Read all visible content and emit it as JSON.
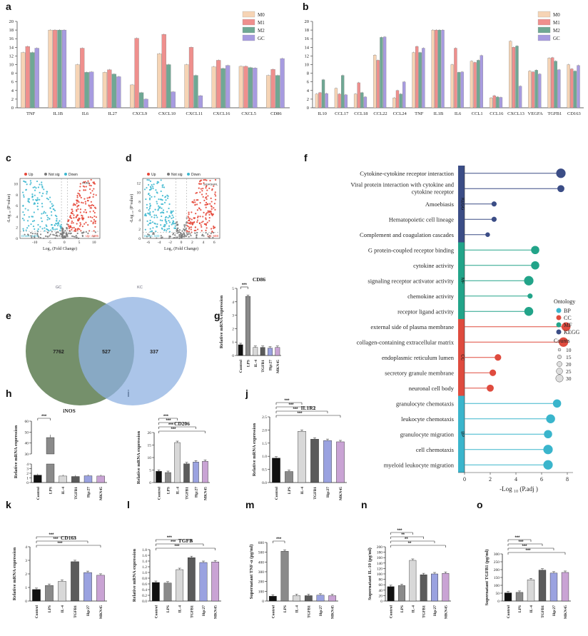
{
  "panel_letters": [
    "a",
    "b",
    "c",
    "d",
    "e",
    "f",
    "g",
    "h",
    "i",
    "j",
    "k",
    "l",
    "m",
    "n",
    "o"
  ],
  "colors": {
    "M0": "#f6d4b5",
    "M1": "#ef8f8d",
    "M2": "#6fa894",
    "GC": "#a79be0",
    "up": "#e6483a",
    "down": "#3eb8d0",
    "ns": "#7a7a7a",
    "bp": "#3ab5cc",
    "cc": "#df4b3e",
    "mf": "#22a489",
    "kegg": "#3b4d86",
    "venn_gc": "#6e8a63",
    "venn_kc": "#8fb2e2",
    "gray_bar": "#a9a9a9",
    "blue_bar": "#9aa2e0",
    "purple_bar": "#c9a3d4",
    "dark": "#111111",
    "mid": "#5b5b5b",
    "light": "#d8d8d8"
  },
  "chart_data": [
    {
      "id": "a",
      "type": "bar",
      "legend": [
        "M0",
        "M1",
        "M2",
        "GC"
      ],
      "legend_position": "top-right",
      "ylim": [
        0,
        20
      ],
      "yticks": [
        0,
        2,
        4,
        6,
        8,
        10,
        12,
        14,
        16,
        18,
        20
      ],
      "categories": [
        "TNF",
        "IL1B",
        "IL6",
        "IL27",
        "CXCL9",
        "CXCL10",
        "CXCL11",
        "CXCL16",
        "CXCL5",
        "CD86"
      ],
      "series": [
        {
          "name": "M0",
          "values": [
            12.8,
            18,
            10,
            8.2,
            5.3,
            12.5,
            10,
            9.5,
            9.6,
            7.5
          ]
        },
        {
          "name": "M1",
          "values": [
            14.2,
            18,
            13.8,
            8.8,
            16.1,
            17,
            14,
            11,
            9.6,
            8.9
          ]
        },
        {
          "name": "M2",
          "values": [
            12.8,
            18,
            8.2,
            7.8,
            3.5,
            10,
            7.5,
            9.1,
            9.3,
            7.5
          ]
        },
        {
          "name": "GC",
          "values": [
            13.8,
            18,
            8.3,
            7.2,
            2,
            3.7,
            2.8,
            9.8,
            9.2,
            11.4
          ]
        }
      ]
    },
    {
      "id": "b",
      "type": "bar",
      "legend": [
        "M0",
        "M1",
        "M2",
        "GC"
      ],
      "legend_position": "top-right",
      "ylim": [
        0,
        20
      ],
      "yticks": [
        0,
        2,
        4,
        6,
        8,
        10,
        12,
        14,
        16,
        18,
        20
      ],
      "categories": [
        "IL10",
        "CCL17",
        "CCL18",
        "CCL22",
        "CCL24",
        "TNF",
        "IL1B",
        "IL6",
        "CCL1",
        "CCL16",
        "CXCL13",
        "VEGFA",
        "TGFB1",
        "CD163"
      ],
      "series": [
        {
          "name": "M0",
          "values": [
            3.2,
            4.5,
            3.2,
            12.2,
            2.3,
            12.8,
            18,
            10,
            10.8,
            2.3,
            15.4,
            8.5,
            11.5,
            10
          ]
        },
        {
          "name": "M1",
          "values": [
            3.5,
            3.2,
            5.8,
            11,
            4,
            14.2,
            18,
            13.8,
            10.5,
            2.8,
            14,
            8.3,
            11.6,
            9
          ]
        },
        {
          "name": "M2",
          "values": [
            6.5,
            7.5,
            3.5,
            16.3,
            3.2,
            12.8,
            18,
            8.2,
            11,
            2.5,
            14.3,
            8.7,
            10.8,
            8.5
          ]
        },
        {
          "name": "GC",
          "values": [
            3.3,
            3,
            2.5,
            16.4,
            6,
            13.8,
            18,
            8.3,
            12.1,
            2.4,
            5,
            7.8,
            8.8,
            9.8
          ]
        }
      ]
    },
    {
      "id": "c",
      "type": "scatter",
      "xlabel": "Log₂ (Fold Change)",
      "ylabel": "-Log ₁₀ (P value)",
      "legend": [
        "Up",
        "Not sig",
        "Down"
      ],
      "xticks": [
        -10,
        -5,
        0,
        5,
        10
      ],
      "yticks": [
        0,
        2,
        4,
        6,
        8,
        10
      ],
      "annotation": "DUB1",
      "down_label": "Down: 4401",
      "up_label": "Up: 4895"
    },
    {
      "id": "d",
      "type": "scatter",
      "xlabel": "Log₂ (Fold Change)",
      "ylabel": "-Log ₁₀ (P value)",
      "legend": [
        "Up",
        "Not sig",
        "Down"
      ],
      "xticks": [
        -6,
        -4,
        -2,
        0,
        2,
        4,
        6
      ],
      "yticks": [
        0,
        2,
        4,
        6,
        8,
        10,
        12
      ],
      "annotation": "SIGRSHRL",
      "down_label": "Down: 533",
      "up_label": "Up: 688"
    },
    {
      "id": "e",
      "type": "venn",
      "sets": [
        "GC",
        "KC"
      ],
      "values": {
        "left": "7762",
        "overlap": "527",
        "right": "337"
      }
    },
    {
      "id": "f",
      "type": "lollipop",
      "xlabel": "-Log ₁₀ (P.adj )",
      "xticks": [
        0,
        2,
        4,
        6,
        8
      ],
      "terms": [
        {
          "term": "Cytokine-cytokine receptor interaction",
          "value": 7.5,
          "cat": "KEGG",
          "count": 30
        },
        {
          "term": "Viral protein interaction with cytokine and cytokine receptor",
          "value": 7.5,
          "cat": "KEGG",
          "count": 20
        },
        {
          "term": "Amoebiasis",
          "value": 2.3,
          "cat": "KEGG",
          "count": 12
        },
        {
          "term": "Hematopoietic cell lineage",
          "value": 2.3,
          "cat": "KEGG",
          "count": 12
        },
        {
          "term": "Complement and coagulation cascades",
          "value": 1.8,
          "cat": "KEGG",
          "count": 10
        },
        {
          "term": "G protein-coupled receptor binding",
          "value": 5.5,
          "cat": "MF",
          "count": 25
        },
        {
          "term": "cytokine activity",
          "value": 5.5,
          "cat": "MF",
          "count": 25
        },
        {
          "term": "signaling receptor activator activity",
          "value": 5,
          "cat": "MF",
          "count": 30
        },
        {
          "term": "chemokine activity",
          "value": 5.1,
          "cat": "MF",
          "count": 12
        },
        {
          "term": "receptor ligand activity",
          "value": 5,
          "cat": "MF",
          "count": 28
        },
        {
          "term": "external side of plasma membrane",
          "value": 7.9,
          "cat": "CC",
          "count": 28
        },
        {
          "term": "collagen-containing extracellular matrix",
          "value": 7.7,
          "cat": "CC",
          "count": 30
        },
        {
          "term": "endoplasmic reticulum lumen",
          "value": 2.6,
          "cat": "CC",
          "count": 18
        },
        {
          "term": "secretory granule membrane",
          "value": 2.2,
          "cat": "CC",
          "count": 18
        },
        {
          "term": "neuronal cell body",
          "value": 2,
          "cat": "CC",
          "count": 20
        },
        {
          "term": "granulocyte chemotaxis",
          "value": 7.2,
          "cat": "BP",
          "count": 25
        },
        {
          "term": "leukocyte chemotaxis",
          "value": 6.7,
          "cat": "BP",
          "count": 28
        },
        {
          "term": "granulocyte migration",
          "value": 6.5,
          "cat": "BP",
          "count": 25
        },
        {
          "term": "cell chemotaxis",
          "value": 6.5,
          "cat": "BP",
          "count": 30
        },
        {
          "term": "myeloid leukocyte migration",
          "value": 6.5,
          "cat": "BP",
          "count": 30
        }
      ],
      "categories": [
        "KEGG",
        "MF",
        "CC",
        "BP"
      ],
      "legend_ontology_title": "Ontology",
      "legend_ontology": [
        "BP",
        "CC",
        "MF",
        "KEGG"
      ],
      "legend_counts_title": "Counts",
      "legend_counts": [
        "10",
        "15",
        "20",
        "25",
        "30"
      ]
    },
    {
      "id": "g",
      "type": "bar",
      "title": "CD86",
      "ylabel": "Relative mRNA expression",
      "ylim": [
        0,
        5
      ],
      "yticks": [
        0,
        1,
        2,
        3,
        4,
        5
      ],
      "categories": [
        "Control",
        "LPS",
        "IL-4",
        "TGFB1",
        "Hgc27",
        "MKN45"
      ],
      "values": [
        0.8,
        4.4,
        0.6,
        0.6,
        0.55,
        0.6
      ],
      "sig": [
        {
          "a": 0,
          "b": 1,
          "label": "***"
        }
      ]
    },
    {
      "id": "h",
      "type": "bar",
      "title": "iNOS",
      "ylabel": "Relative mRNA expression",
      "ylim": [
        0,
        60
      ],
      "yticks_lower": [
        0,
        1,
        2,
        3,
        4
      ],
      "yticks_upper": [
        30,
        40,
        50,
        60
      ],
      "broken_axis": true,
      "categories": [
        "Control",
        "LPS",
        "IL-4",
        "TGFB1",
        "Hgc27",
        "MKN45"
      ],
      "values": [
        1.6,
        45,
        1.4,
        1.3,
        1.45,
        1.4
      ],
      "sig": [
        {
          "a": 0,
          "b": 1,
          "label": "***"
        }
      ]
    },
    {
      "id": "i",
      "type": "bar",
      "title": "CD206",
      "ylabel": "Relative mRNA expression",
      "ylim": [
        0,
        20
      ],
      "yticks": [
        0,
        5,
        10,
        15,
        20
      ],
      "categories": [
        "Control",
        "LPS",
        "IL-4",
        "TGFB1",
        "Hgc27",
        "MKN45"
      ],
      "values": [
        4.5,
        4,
        16,
        7.5,
        8.2,
        8.5
      ],
      "sig": [
        {
          "a": 0,
          "b": 2,
          "label": "***"
        },
        {
          "a": 0,
          "b": 3,
          "label": "***"
        },
        {
          "a": 0,
          "b": 4,
          "label": "***"
        },
        {
          "a": 0,
          "b": 5,
          "label": "***"
        }
      ]
    },
    {
      "id": "j",
      "type": "bar",
      "title": "IL1R2",
      "ylabel": "Relative mRNA expression",
      "ylim": [
        0,
        2.5
      ],
      "yticks": [
        0.0,
        0.5,
        1.0,
        1.5,
        2.0,
        2.5
      ],
      "categories": [
        "Control",
        "LPS",
        "IL-4",
        "TGFB1",
        "Hgc27",
        "MKN45"
      ],
      "values": [
        0.93,
        0.42,
        1.95,
        1.65,
        1.6,
        1.55
      ],
      "sig": [
        {
          "a": 0,
          "b": 2,
          "label": "***"
        },
        {
          "a": 0,
          "b": 3,
          "label": "***"
        },
        {
          "a": 0,
          "b": 4,
          "label": "***"
        },
        {
          "a": 0,
          "b": 5,
          "label": "***"
        }
      ]
    },
    {
      "id": "k",
      "type": "bar",
      "title": "CD163",
      "ylabel": "Relative mRNA expression",
      "ylim": [
        0,
        4
      ],
      "yticks": [
        0,
        1,
        2,
        3,
        4
      ],
      "categories": [
        "Control",
        "LPS",
        "IL-4",
        "TGFB1",
        "Hgc27",
        "MKN45"
      ],
      "values": [
        0.85,
        1.15,
        1.45,
        2.9,
        2.1,
        1.9
      ],
      "sig": [
        {
          "a": 0,
          "b": 3,
          "label": "***"
        },
        {
          "a": 0,
          "b": 4,
          "label": "***"
        },
        {
          "a": 0,
          "b": 5,
          "label": "***"
        }
      ]
    },
    {
      "id": "l",
      "type": "bar",
      "title": "TGFB",
      "ylabel": "Relative mRNA expression",
      "ylim": [
        0,
        1.8
      ],
      "yticks": [
        0.0,
        0.2,
        0.4,
        0.6,
        0.8,
        1.0,
        1.2,
        1.4,
        1.6,
        1.8
      ],
      "categories": [
        "Control",
        "LPS",
        "IL-4",
        "TGFB1",
        "Hgc27",
        "MKN45"
      ],
      "values": [
        0.65,
        0.63,
        1.1,
        1.52,
        1.35,
        1.37
      ],
      "sig": [
        {
          "a": 0,
          "b": 3,
          "label": "***"
        },
        {
          "a": 0,
          "b": 4,
          "label": "***"
        },
        {
          "a": 0,
          "b": 5,
          "label": "***"
        }
      ]
    },
    {
      "id": "m",
      "type": "bar",
      "title": "",
      "ylabel": "Supernatant TNF-α (pg/ml)",
      "ylim": [
        0,
        600
      ],
      "yticks": [
        0,
        100,
        200,
        300,
        400,
        500,
        600
      ],
      "categories": [
        "Control",
        "LPS",
        "IL-4",
        "TGFB1",
        "Hgc27",
        "MKN45"
      ],
      "values": [
        50,
        510,
        55,
        55,
        60,
        55
      ],
      "sig": [
        {
          "a": 0,
          "b": 1,
          "label": "***"
        }
      ]
    },
    {
      "id": "n",
      "type": "bar",
      "title": "",
      "ylabel": "Supernatant IL-10 (pg/ml)",
      "ylim": [
        0,
        200
      ],
      "yticks": [
        0,
        20,
        40,
        60,
        80,
        100,
        120,
        140,
        160,
        180,
        200
      ],
      "categories": [
        "Control",
        "LPS",
        "IL-4",
        "TGFB1",
        "Hgc27",
        "MKN45"
      ],
      "values": [
        53,
        57,
        150,
        97,
        100,
        102
      ],
      "sig": [
        {
          "a": 0,
          "b": 2,
          "label": "***"
        },
        {
          "a": 0,
          "b": 3,
          "label": "**"
        },
        {
          "a": 0,
          "b": 4,
          "label": "**"
        },
        {
          "a": 0,
          "b": 5,
          "label": "**"
        }
      ]
    },
    {
      "id": "o",
      "type": "bar",
      "title": "",
      "ylabel": "Supernatant TGFB1 (pg/ml)",
      "ylim": [
        0,
        300
      ],
      "yticks": [
        0,
        50,
        100,
        150,
        200,
        250,
        300
      ],
      "categories": [
        "Control",
        "LPS",
        "IL-4",
        "TGFB1",
        "Hgc27",
        "MKN45"
      ],
      "values": [
        52,
        55,
        135,
        197,
        178,
        182
      ],
      "sig": [
        {
          "a": 0,
          "b": 2,
          "label": "***"
        },
        {
          "a": 0,
          "b": 3,
          "label": "***"
        },
        {
          "a": 0,
          "b": 4,
          "label": "***"
        },
        {
          "a": 0,
          "b": 5,
          "label": "***"
        }
      ]
    }
  ]
}
